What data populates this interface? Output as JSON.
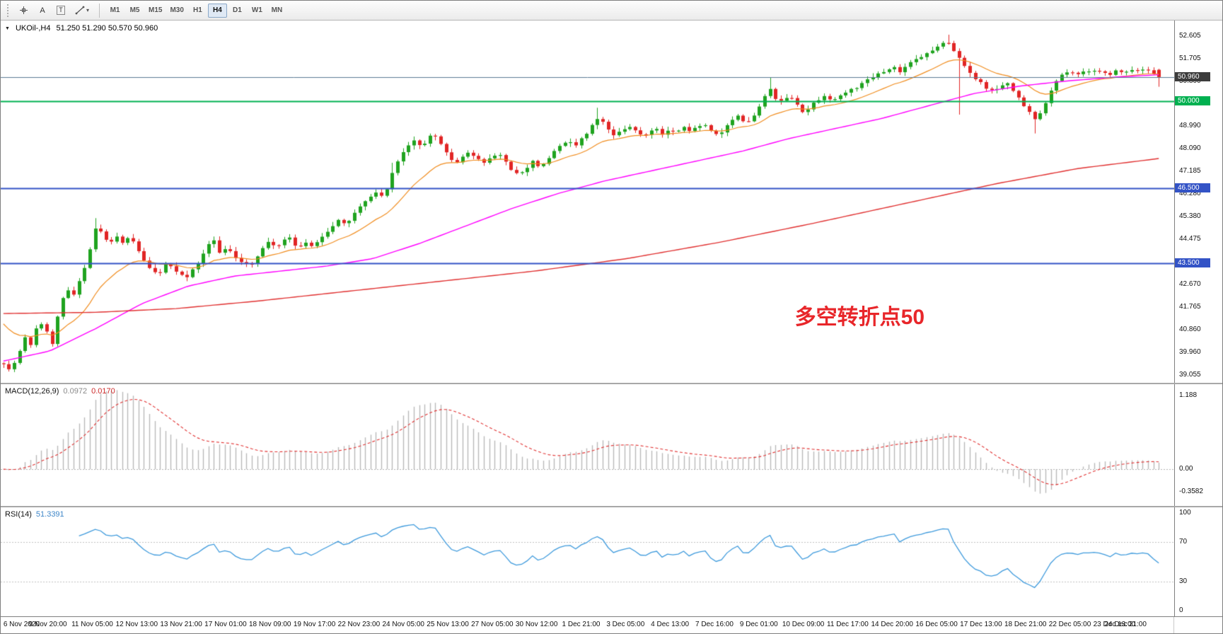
{
  "toolbar": {
    "tools": {
      "a_label": "A",
      "t_label": "T"
    },
    "timeframes": [
      "M1",
      "M5",
      "M15",
      "M30",
      "H1",
      "H4",
      "D1",
      "W1",
      "MN"
    ],
    "active_timeframe": "H4"
  },
  "chart_header": {
    "collapse_marker": "▼",
    "title": "UKOil-,H4",
    "ohlc": "51.250 51.290 50.570 50.960"
  },
  "indicators": {
    "macd_label": "MACD(12,26,9)",
    "macd_value_main": "0.0972",
    "macd_value_signal": "0.0170",
    "rsi_label": "RSI(14)",
    "rsi_value": "51.3391"
  },
  "annotation": {
    "text": "多空转折点50"
  },
  "chart_data": [
    {
      "type": "candlestick",
      "symbol": "UKOil-",
      "timeframe": "H4",
      "current_price": 50.96,
      "ohlc_display": {
        "open": "51.250",
        "high": "51.290",
        "low": "50.570",
        "close": "50.960"
      },
      "y_axis_ticks": [
        "52.605",
        "51.705",
        "50.800",
        "49.895",
        "48.990",
        "48.090",
        "47.185",
        "46.280",
        "45.380",
        "44.475",
        "43.570",
        "42.670",
        "41.765",
        "40.860",
        "39.960",
        "39.055"
      ],
      "y_range_labels": [
        39.055,
        52.605
      ],
      "y_render_range": [
        38.9,
        53.05
      ],
      "num_candles": 215,
      "up_color": "#1fa31f",
      "down_color": "#e12525",
      "x_labels": [
        "6 Nov 2020",
        "9 Nov 20:00",
        "11 Nov 05:00",
        "12 Nov 13:00",
        "13 Nov 21:00",
        "17 Nov 01:00",
        "18 Nov 09:00",
        "19 Nov 17:00",
        "22 Nov 23:00",
        "24 Nov 05:00",
        "25 Nov 13:00",
        "27 Nov 05:00",
        "30 Nov 12:00",
        "1 Dec 21:00",
        "3 Dec 05:00",
        "4 Dec 13:00",
        "7 Dec 16:00",
        "9 Dec 01:00",
        "10 Dec 09:00",
        "11 Dec 17:00",
        "14 Dec 20:00",
        "16 Dec 05:00",
        "17 Dec 13:00",
        "18 Dec 21:00",
        "22 Dec 05:00",
        "23 Dec 13:00",
        "24 Dec 21:00"
      ],
      "price_anchors": [
        [
          0.0,
          39.45
        ],
        [
          0.006,
          39.2
        ],
        [
          0.012,
          39.7
        ],
        [
          0.018,
          40.6
        ],
        [
          0.024,
          40.15
        ],
        [
          0.03,
          41.2
        ],
        [
          0.036,
          40.9
        ],
        [
          0.042,
          40.3
        ],
        [
          0.048,
          41.6
        ],
        [
          0.054,
          42.45
        ],
        [
          0.06,
          42.2
        ],
        [
          0.066,
          42.9
        ],
        [
          0.072,
          43.6
        ],
        [
          0.078,
          44.75
        ],
        [
          0.082,
          45.05
        ],
        [
          0.086,
          44.6
        ],
        [
          0.092,
          44.25
        ],
        [
          0.098,
          44.55
        ],
        [
          0.104,
          44.3
        ],
        [
          0.11,
          44.6
        ],
        [
          0.116,
          44.1
        ],
        [
          0.122,
          43.55
        ],
        [
          0.128,
          43.25
        ],
        [
          0.134,
          43.05
        ],
        [
          0.14,
          43.5
        ],
        [
          0.146,
          43.3
        ],
        [
          0.152,
          43.15
        ],
        [
          0.158,
          42.95
        ],
        [
          0.164,
          43.3
        ],
        [
          0.17,
          43.65
        ],
        [
          0.176,
          44.2
        ],
        [
          0.182,
          44.4
        ],
        [
          0.188,
          43.9
        ],
        [
          0.194,
          44.15
        ],
        [
          0.2,
          43.8
        ],
        [
          0.206,
          43.55
        ],
        [
          0.212,
          43.4
        ],
        [
          0.218,
          43.7
        ],
        [
          0.224,
          44.05
        ],
        [
          0.23,
          44.45
        ],
        [
          0.236,
          44.15
        ],
        [
          0.242,
          44.4
        ],
        [
          0.248,
          44.55
        ],
        [
          0.254,
          44.1
        ],
        [
          0.26,
          44.3
        ],
        [
          0.266,
          44.2
        ],
        [
          0.272,
          44.4
        ],
        [
          0.278,
          44.65
        ],
        [
          0.284,
          45.0
        ],
        [
          0.29,
          45.25
        ],
        [
          0.296,
          45.05
        ],
        [
          0.302,
          45.45
        ],
        [
          0.308,
          45.7
        ],
        [
          0.314,
          46.0
        ],
        [
          0.32,
          46.35
        ],
        [
          0.326,
          46.2
        ],
        [
          0.332,
          46.5
        ],
        [
          0.338,
          47.3
        ],
        [
          0.344,
          47.95
        ],
        [
          0.35,
          48.15
        ],
        [
          0.356,
          48.4
        ],
        [
          0.362,
          48.2
        ],
        [
          0.368,
          48.55
        ],
        [
          0.374,
          48.65
        ],
        [
          0.38,
          48.1
        ],
        [
          0.386,
          47.75
        ],
        [
          0.392,
          47.55
        ],
        [
          0.398,
          47.8
        ],
        [
          0.404,
          47.95
        ],
        [
          0.41,
          47.7
        ],
        [
          0.416,
          47.5
        ],
        [
          0.422,
          47.75
        ],
        [
          0.428,
          47.9
        ],
        [
          0.434,
          47.55
        ],
        [
          0.44,
          47.25
        ],
        [
          0.446,
          46.95
        ],
        [
          0.452,
          47.3
        ],
        [
          0.458,
          47.55
        ],
        [
          0.464,
          47.3
        ],
        [
          0.47,
          47.65
        ],
        [
          0.476,
          47.95
        ],
        [
          0.482,
          48.25
        ],
        [
          0.488,
          48.4
        ],
        [
          0.494,
          48.15
        ],
        [
          0.5,
          48.55
        ],
        [
          0.506,
          48.75
        ],
        [
          0.512,
          49.2
        ],
        [
          0.516,
          49.45
        ],
        [
          0.522,
          48.95
        ],
        [
          0.528,
          48.65
        ],
        [
          0.534,
          48.85
        ],
        [
          0.54,
          49.0
        ],
        [
          0.546,
          48.8
        ],
        [
          0.552,
          48.6
        ],
        [
          0.558,
          48.75
        ],
        [
          0.564,
          48.9
        ],
        [
          0.57,
          48.7
        ],
        [
          0.576,
          48.85
        ],
        [
          0.582,
          48.65
        ],
        [
          0.588,
          48.95
        ],
        [
          0.594,
          48.8
        ],
        [
          0.6,
          48.95
        ],
        [
          0.606,
          49.1
        ],
        [
          0.612,
          48.75
        ],
        [
          0.618,
          48.6
        ],
        [
          0.624,
          48.95
        ],
        [
          0.63,
          49.25
        ],
        [
          0.636,
          49.45
        ],
        [
          0.642,
          49.1
        ],
        [
          0.648,
          49.4
        ],
        [
          0.654,
          49.7
        ],
        [
          0.66,
          50.35
        ],
        [
          0.664,
          50.55
        ],
        [
          0.668,
          50.1
        ],
        [
          0.674,
          49.95
        ],
        [
          0.68,
          50.15
        ],
        [
          0.686,
          49.9
        ],
        [
          0.692,
          49.6
        ],
        [
          0.698,
          49.75
        ],
        [
          0.704,
          50.0
        ],
        [
          0.71,
          50.2
        ],
        [
          0.716,
          50.05
        ],
        [
          0.722,
          50.15
        ],
        [
          0.728,
          50.3
        ],
        [
          0.734,
          50.45
        ],
        [
          0.74,
          50.6
        ],
        [
          0.746,
          50.8
        ],
        [
          0.752,
          50.95
        ],
        [
          0.758,
          51.1
        ],
        [
          0.764,
          51.25
        ],
        [
          0.77,
          51.4
        ],
        [
          0.776,
          51.2
        ],
        [
          0.782,
          51.45
        ],
        [
          0.788,
          51.6
        ],
        [
          0.794,
          51.75
        ],
        [
          0.8,
          51.95
        ],
        [
          0.806,
          52.1
        ],
        [
          0.812,
          52.3
        ],
        [
          0.816,
          52.4
        ],
        [
          0.82,
          52.15
        ],
        [
          0.826,
          51.8
        ],
        [
          0.832,
          51.4
        ],
        [
          0.838,
          51.05
        ],
        [
          0.844,
          50.8
        ],
        [
          0.85,
          50.55
        ],
        [
          0.856,
          50.35
        ],
        [
          0.862,
          50.6
        ],
        [
          0.868,
          50.75
        ],
        [
          0.874,
          50.4
        ],
        [
          0.88,
          50.05
        ],
        [
          0.886,
          49.65
        ],
        [
          0.892,
          49.3
        ],
        [
          0.898,
          49.55
        ],
        [
          0.904,
          50.15
        ],
        [
          0.91,
          50.7
        ],
        [
          0.916,
          51.0
        ],
        [
          0.922,
          51.2
        ],
        [
          0.928,
          51.05
        ],
        [
          0.934,
          51.25
        ],
        [
          0.94,
          51.1
        ],
        [
          0.946,
          51.3
        ],
        [
          0.952,
          51.15
        ],
        [
          0.958,
          51.05
        ],
        [
          0.964,
          51.25
        ],
        [
          0.97,
          51.1
        ],
        [
          0.976,
          51.3
        ],
        [
          0.982,
          51.15
        ],
        [
          0.988,
          51.25
        ],
        [
          1.0,
          50.96
        ]
      ],
      "wick_events": [
        [
          0.08,
          "high",
          0.38
        ],
        [
          0.338,
          "high",
          0.3
        ],
        [
          0.516,
          "high",
          0.32
        ],
        [
          0.662,
          "high",
          0.28
        ],
        [
          0.816,
          "high",
          0.25
        ],
        [
          0.826,
          "low",
          2.15
        ],
        [
          0.892,
          "low",
          0.45
        ]
      ],
      "final_candle": {
        "o": 51.25,
        "h": 51.29,
        "l": 50.57,
        "c": 50.96
      },
      "moving_averages": [
        {
          "name": "ema-fast",
          "color": "#f08c1e",
          "period": 16,
          "seed": 41.3
        },
        {
          "name": "ma-medium",
          "color": "#ff00ff",
          "anchors": [
            [
              0,
              39.6
            ],
            [
              0.04,
              40.0
            ],
            [
              0.08,
              40.9
            ],
            [
              0.12,
              41.9
            ],
            [
              0.16,
              42.6
            ],
            [
              0.2,
              43.0
            ],
            [
              0.24,
              43.2
            ],
            [
              0.28,
              43.4
            ],
            [
              0.32,
              43.7
            ],
            [
              0.36,
              44.3
            ],
            [
              0.4,
              45.0
            ],
            [
              0.44,
              45.7
            ],
            [
              0.48,
              46.3
            ],
            [
              0.52,
              46.8
            ],
            [
              0.56,
              47.2
            ],
            [
              0.6,
              47.6
            ],
            [
              0.64,
              48.0
            ],
            [
              0.68,
              48.5
            ],
            [
              0.72,
              48.9
            ],
            [
              0.76,
              49.3
            ],
            [
              0.8,
              49.8
            ],
            [
              0.84,
              50.3
            ],
            [
              0.88,
              50.6
            ],
            [
              0.92,
              50.8
            ],
            [
              0.96,
              50.95
            ],
            [
              1,
              51.05
            ]
          ]
        },
        {
          "name": "ma-slow",
          "color": "#e03030",
          "anchors": [
            [
              0,
              41.5
            ],
            [
              0.08,
              41.55
            ],
            [
              0.15,
              41.7
            ],
            [
              0.22,
              42.0
            ],
            [
              0.3,
              42.4
            ],
            [
              0.38,
              42.8
            ],
            [
              0.46,
              43.2
            ],
            [
              0.54,
              43.7
            ],
            [
              0.62,
              44.35
            ],
            [
              0.7,
              45.1
            ],
            [
              0.78,
              45.9
            ],
            [
              0.86,
              46.7
            ],
            [
              0.93,
              47.3
            ],
            [
              1,
              47.7
            ]
          ]
        }
      ],
      "horizontal_lines": [
        {
          "price": 50.96,
          "color": "#5b7b95",
          "width": 1,
          "tag": "50.960",
          "tag_bg": "#3c3c3c",
          "name": "current-price-line"
        },
        {
          "price": 50.0,
          "color": "#00b050",
          "width": 2,
          "tag": "50.000",
          "tag_bg": "#00b050",
          "name": "green-level-line"
        },
        {
          "price": 46.5,
          "color": "#3353c6",
          "width": 2,
          "tag": "46.500",
          "tag_bg": "#3353c6",
          "name": "blue-level-line-46-5"
        },
        {
          "price": 43.5,
          "color": "#3353c6",
          "width": 2,
          "tag": "43.500",
          "tag_bg": "#3353c6",
          "name": "blue-level-line-43-5"
        }
      ],
      "annotation": {
        "text": "多空转折点50",
        "color": "#e8262a",
        "x_frac": 0.74,
        "price": 41.55,
        "font_px": 30
      }
    },
    {
      "type": "bar",
      "name": "MACD",
      "label": "MACD(12,26,9)",
      "current_values": [
        0.0972,
        0.017
      ],
      "params": [
        12,
        26,
        9
      ],
      "y_ticks": [
        {
          "v": 1.188,
          "t": "1.188"
        },
        {
          "v": 0,
          "t": "0.00"
        },
        {
          "v": -0.3582,
          "t": "-0.3582"
        }
      ],
      "render_range": [
        -0.5,
        1.3
      ],
      "hist_color": "#b9b9b9",
      "signal_color": "#e03030",
      "signal_style": "dashed"
    },
    {
      "type": "line",
      "name": "RSI",
      "label": "RSI(14)",
      "current_value": 51.3391,
      "period": 14,
      "levels": [
        70,
        30
      ],
      "y_ticks": [
        {
          "v": 100,
          "t": "100"
        },
        {
          "v": 70,
          "t": "70"
        },
        {
          "v": 30,
          "t": "30"
        },
        {
          "v": 0,
          "t": "0"
        }
      ],
      "line_color": "#3e9adc"
    }
  ]
}
